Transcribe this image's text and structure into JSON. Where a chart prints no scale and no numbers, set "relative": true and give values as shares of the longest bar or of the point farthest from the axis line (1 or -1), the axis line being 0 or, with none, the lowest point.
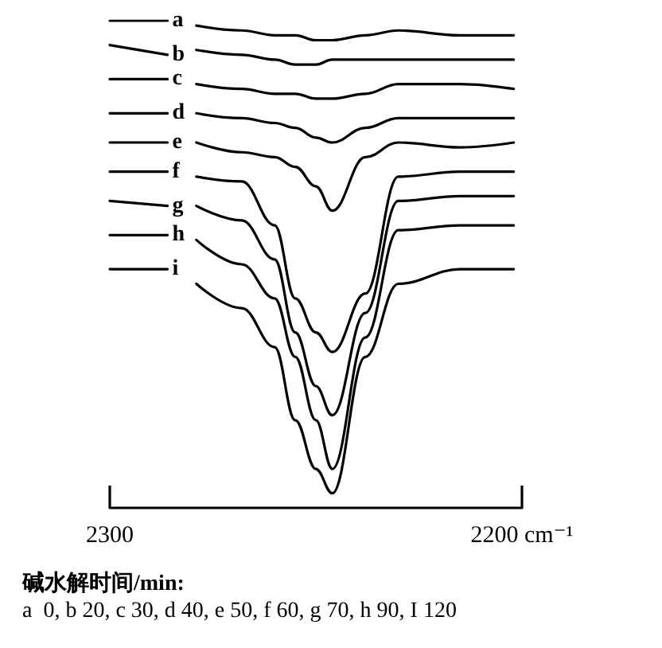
{
  "chart_data": {
    "type": "line",
    "relative": true,
    "xlim": [
      2300,
      2200
    ],
    "xticks": [
      2300,
      {
        "value": 2200,
        "label": "2200 cm⁻¹"
      }
    ],
    "grid": false,
    "legend": false,
    "marker": "none",
    "line_style": "solid",
    "tick_labels": "x",
    "x": [
      2300,
      2286,
      2283,
      2279,
      2268,
      2260,
      2255,
      2250,
      2246,
      2238,
      2230,
      2215,
      2202
    ],
    "series": [
      {
        "name": "a",
        "color": "#000000",
        "values": [
          1.0,
          1.0,
          null,
          0.99,
          0.98,
          0.97,
          0.97,
          0.96,
          0.96,
          0.97,
          0.98,
          0.97,
          0.97
        ]
      },
      {
        "name": "b",
        "color": "#000000",
        "values": [
          0.95,
          0.93,
          null,
          0.94,
          0.93,
          0.92,
          0.91,
          0.91,
          0.92,
          0.92,
          0.92,
          0.92,
          0.92
        ]
      },
      {
        "name": "c",
        "color": "#000000",
        "values": [
          0.88,
          0.88,
          null,
          0.87,
          0.86,
          0.85,
          0.85,
          0.84,
          0.84,
          0.85,
          0.87,
          0.87,
          0.86
        ]
      },
      {
        "name": "d",
        "color": "#000000",
        "values": [
          0.81,
          0.81,
          null,
          0.81,
          0.8,
          0.79,
          0.78,
          0.76,
          0.75,
          0.78,
          0.8,
          0.8,
          0.8
        ]
      },
      {
        "name": "e",
        "color": "#000000",
        "values": [
          0.75,
          0.75,
          null,
          0.75,
          0.73,
          0.72,
          0.7,
          0.66,
          0.61,
          0.72,
          0.75,
          0.74,
          0.75
        ]
      },
      {
        "name": "f",
        "color": "#000000",
        "values": [
          0.69,
          0.69,
          null,
          0.68,
          0.67,
          0.58,
          0.43,
          0.36,
          0.32,
          0.44,
          0.68,
          0.69,
          0.69
        ]
      },
      {
        "name": "g",
        "color": "#000000",
        "values": [
          0.63,
          0.62,
          null,
          0.62,
          0.59,
          0.51,
          0.36,
          0.25,
          0.19,
          0.4,
          0.63,
          0.64,
          0.64
        ]
      },
      {
        "name": "h",
        "color": "#000000",
        "values": [
          0.56,
          0.56,
          null,
          0.55,
          0.5,
          0.43,
          0.31,
          0.18,
          0.08,
          0.35,
          0.57,
          0.58,
          0.58
        ]
      },
      {
        "name": "i",
        "color": "#000000",
        "values": [
          0.49,
          0.49,
          null,
          0.46,
          0.41,
          0.33,
          0.18,
          0.08,
          0.03,
          0.31,
          0.46,
          0.49,
          0.49
        ]
      }
    ],
    "annotations": [
      "碱水解时间/min:",
      "a  0, b 20, c 30, d 40, e 50, f 60, g 70, h 90, I 120"
    ]
  }
}
